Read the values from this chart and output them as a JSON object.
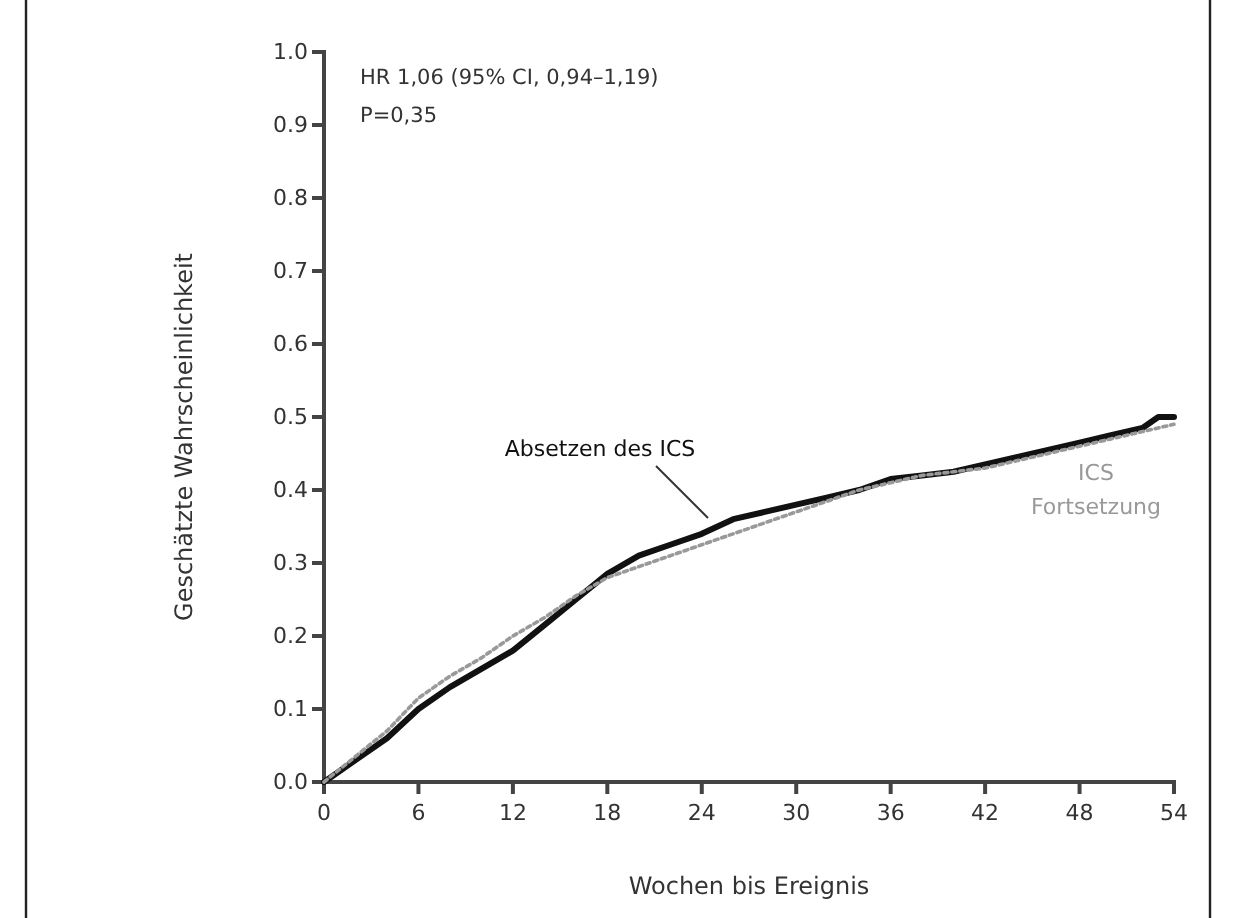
{
  "chart_data": {
    "type": "line",
    "xlabel": "Wochen bis Ereignis",
    "ylabel": "Geschätzte Wahrscheinlichkeit",
    "xlim": [
      0,
      54
    ],
    "ylim": [
      0,
      1.0
    ],
    "xticks": [
      0,
      6,
      12,
      18,
      24,
      30,
      36,
      42,
      48,
      54
    ],
    "yticks": [
      {
        "value": 0,
        "label": "0.0"
      },
      0.1,
      0.2,
      0.3,
      0.4,
      0.5,
      0.6,
      0.7,
      0.8,
      0.9,
      {
        "value": 1,
        "label": "1.0"
      }
    ],
    "annotations": [
      "HR 1,06 (95% CI, 0,94–1,19)",
      "P=0,35"
    ],
    "series": [
      {
        "name": "Absetzen des ICS",
        "color": "#111111",
        "line_style": "solid",
        "x": [
          0,
          2,
          4,
          6,
          8,
          10,
          12,
          14,
          16,
          18,
          20,
          22,
          24,
          26,
          28,
          30,
          32,
          34,
          36,
          38,
          40,
          42,
          44,
          46,
          48,
          50,
          52,
          53,
          54
        ],
        "values": [
          0,
          0.03,
          0.06,
          0.1,
          0.13,
          0.155,
          0.18,
          0.215,
          0.25,
          0.285,
          0.31,
          0.325,
          0.34,
          0.36,
          0.37,
          0.38,
          0.39,
          0.4,
          0.415,
          0.42,
          0.425,
          0.435,
          0.445,
          0.455,
          0.465,
          0.475,
          0.485,
          0.5,
          0.5
        ]
      },
      {
        "name": "ICS Fortsetzung",
        "color": "#999999",
        "line_style": "dotted",
        "x": [
          0,
          2,
          4,
          6,
          8,
          10,
          12,
          14,
          16,
          18,
          20,
          22,
          24,
          26,
          28,
          30,
          32,
          34,
          36,
          38,
          40,
          42,
          44,
          46,
          48,
          50,
          52,
          54
        ],
        "values": [
          0,
          0.035,
          0.07,
          0.115,
          0.145,
          0.17,
          0.2,
          0.225,
          0.255,
          0.28,
          0.295,
          0.31,
          0.325,
          0.34,
          0.355,
          0.37,
          0.385,
          0.4,
          0.41,
          0.42,
          0.425,
          0.43,
          0.44,
          0.45,
          0.46,
          0.47,
          0.48,
          0.49
        ]
      }
    ],
    "grid": false,
    "legend": false,
    "marker": "none"
  }
}
